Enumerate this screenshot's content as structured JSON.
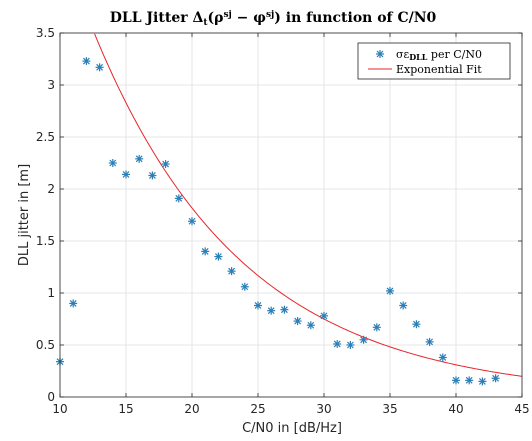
{
  "chart_data": {
    "type": "scatter",
    "title_html": "DLL Jitter Δ",
    "title": "DLL Jitter Δt(ρ^sj − φ^sj) in function of C/N0",
    "xlabel": "C/N0 in [dB/Hz]",
    "ylabel": "DLL jitter in [m]",
    "xlim": [
      10,
      45
    ],
    "ylim": [
      0,
      3.5
    ],
    "xticks": [
      10,
      15,
      20,
      25,
      30,
      35,
      40,
      45
    ],
    "yticks": [
      0,
      0.5,
      1,
      1.5,
      2,
      2.5,
      3,
      3.5
    ],
    "ytick_labels": [
      "0",
      "0.5",
      "1",
      "1.5",
      "2",
      "2.5",
      "3",
      "3.5"
    ],
    "grid": true,
    "legend_position": "top-right",
    "series": [
      {
        "name": "σε_DLL per C/N0",
        "kind": "markers",
        "color": "#2a7fb8",
        "x": [
          10,
          11,
          12,
          13,
          14,
          15,
          16,
          17,
          18,
          19,
          20,
          21,
          22,
          23,
          24,
          25,
          26,
          27,
          28,
          29,
          30,
          31,
          32,
          33,
          34,
          35,
          36,
          37,
          38,
          39,
          40,
          41,
          42,
          43
        ],
        "y": [
          0.34,
          0.9,
          3.23,
          3.17,
          2.25,
          2.14,
          2.29,
          2.13,
          2.24,
          1.91,
          1.69,
          1.4,
          1.35,
          1.21,
          1.06,
          0.88,
          0.83,
          0.84,
          0.73,
          0.69,
          0.78,
          0.51,
          0.5,
          0.55,
          0.67,
          1.02,
          0.88,
          0.7,
          0.53,
          0.38,
          0.16,
          0.16,
          0.15,
          0.18
        ]
      },
      {
        "name": "Exponential Fit",
        "kind": "line",
        "color": "#e8262a",
        "model": "a*exp(b*x)",
        "a": 10.67,
        "b": -0.0885
      }
    ]
  }
}
